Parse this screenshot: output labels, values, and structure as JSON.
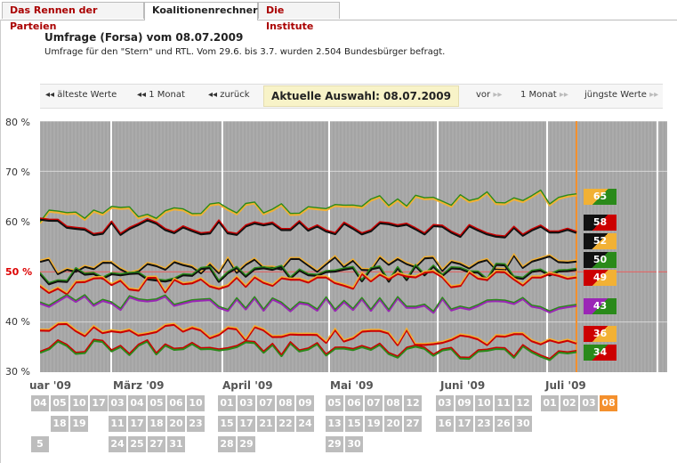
{
  "tabs": [
    {
      "label": "Das Rennen der Parteien"
    },
    {
      "label": "Koalitionenrechner"
    },
    {
      "label": "Die Institute"
    }
  ],
  "survey": {
    "title": "Umfrage (Forsa) vom 08.07.2009",
    "description": "Umfrage für den \"Stern\" und RTL. Vom 29.6. bis 3.7. wurden 2.504 Bundesbürger befragt."
  },
  "nav": {
    "oldest": "älteste Werte",
    "back_month": "1 Monat",
    "back": "zurück",
    "current": "Aktuelle Auswahl: 08.07.2009",
    "forward": "vor",
    "forward_month": "1 Monat",
    "newest": "jüngste Werte"
  },
  "chart_data": {
    "type": "line",
    "ylim": [
      30,
      80
    ],
    "yticks": [
      "80 %",
      "70 %",
      "60 %",
      "50 %",
      "40 %",
      "30 %"
    ],
    "majority_label": "50 %",
    "final_values": [
      {
        "value": "65",
        "colors": [
          "#f2b134",
          "#2a8a1a"
        ]
      },
      {
        "value": "58",
        "colors": [
          "#111111",
          "#cc0000"
        ]
      },
      {
        "value": "52",
        "colors": [
          "#111111",
          "#f2b134"
        ]
      },
      {
        "value": "50",
        "colors": [
          "#111111",
          "#2a8a1a"
        ]
      },
      {
        "value": "49",
        "colors": [
          "#cc0000",
          "#f2b134"
        ]
      },
      {
        "value": "43",
        "colors": [
          "#9b26b6",
          "#2a8a1a"
        ]
      },
      {
        "value": "36",
        "colors": [
          "#cc0000",
          "#f2b134"
        ]
      },
      {
        "value": "34",
        "colors": [
          "#2a8a1a",
          "#cc0000"
        ]
      }
    ]
  },
  "months": [
    {
      "label": "uar '09",
      "days": [
        "04",
        "05",
        "10",
        "17",
        "18",
        "19",
        "5"
      ]
    },
    {
      "label": "März '09",
      "days": [
        "03",
        "04",
        "05",
        "06",
        "10",
        "11",
        "17",
        "18",
        "20",
        "23",
        "24",
        "25",
        "27",
        "31"
      ]
    },
    {
      "label": "April '09",
      "days": [
        "01",
        "03",
        "07",
        "08",
        "09",
        "15",
        "17",
        "21",
        "22",
        "24",
        "28",
        "29"
      ]
    },
    {
      "label": "Mai '09",
      "days": [
        "05",
        "06",
        "07",
        "08",
        "12",
        "13",
        "15",
        "19",
        "20",
        "27",
        "29",
        "30"
      ]
    },
    {
      "label": "Juni '09",
      "days": [
        "03",
        "09",
        "10",
        "11",
        "12",
        "16",
        "17",
        "23",
        "26",
        "30"
      ]
    },
    {
      "label": "Juli '09",
      "days": [
        "01",
        "02",
        "03",
        "08"
      ]
    }
  ]
}
